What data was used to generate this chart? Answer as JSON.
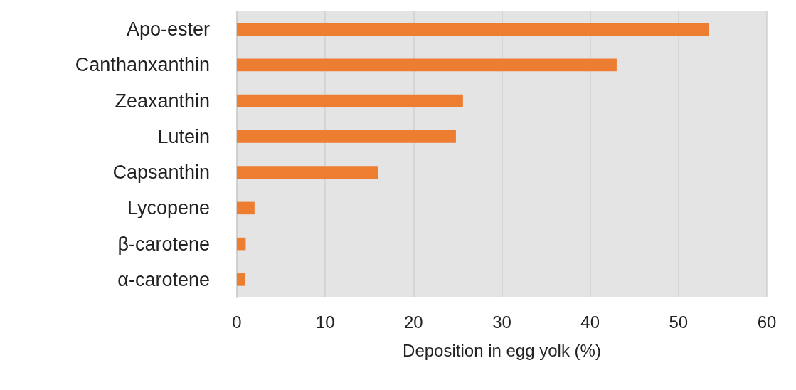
{
  "chart_data": {
    "type": "bar",
    "orientation": "horizontal",
    "xlabel": "Deposition in egg yolk (%)",
    "categories": [
      "Apo-ester",
      "Canthanxanthin",
      "Zeaxanthin",
      "Lutein",
      "Capsanthin",
      "Lycopene",
      "β-carotene",
      "α-carotene"
    ],
    "values": [
      53.4,
      43.0,
      25.6,
      24.8,
      16.0,
      2.0,
      1.0,
      0.9
    ],
    "color": "#ed7d31",
    "xlim": [
      0,
      60
    ],
    "xticks": [
      0,
      10,
      20,
      30,
      40,
      50,
      60
    ],
    "grid": "x"
  }
}
